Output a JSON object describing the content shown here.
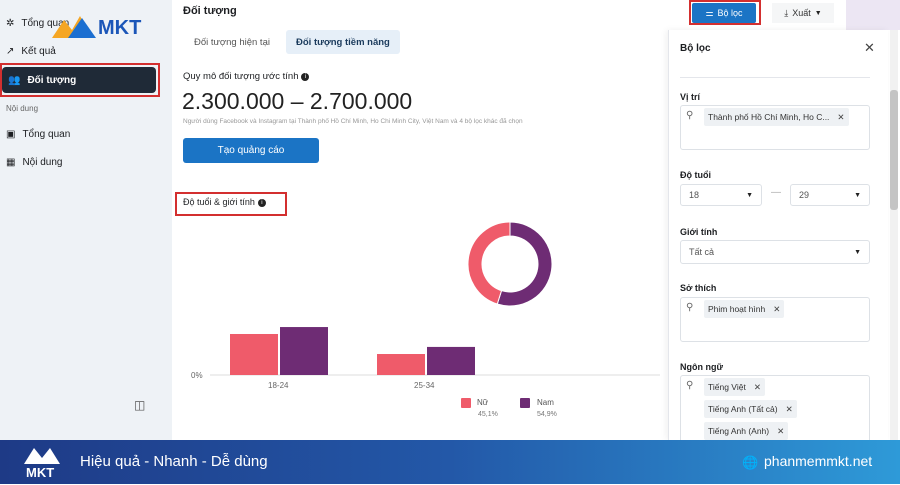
{
  "sidebar": {
    "items": [
      {
        "label": "Tổng quan",
        "icon": "overview-icon"
      },
      {
        "label": "Kết quả",
        "icon": "results-icon"
      },
      {
        "label": "Đối tượng",
        "icon": "audience-icon",
        "active": true
      }
    ],
    "section_label": "Nội dung",
    "content_items": [
      {
        "label": "Tổng quan",
        "icon": "content-overview-icon"
      },
      {
        "label": "Nội dung",
        "icon": "table-icon"
      }
    ],
    "logo_text": "MKT"
  },
  "header": {
    "title": "Đối tượng",
    "filter_button": "Bộ lọc",
    "export_button": "Xuất"
  },
  "tabs": [
    {
      "label": "Đối tượng hiện tại"
    },
    {
      "label": "Đối tượng tiềm năng",
      "active": true
    }
  ],
  "audience": {
    "size_label": "Quy mô đối tượng ước tính",
    "size_value": "2.300.000 – 2.700.000",
    "description": "Người dùng Facebook và Instagram tại Thành phố Hồ Chí Minh, Ho Chi Minh City, Việt Nam và 4 bộ lọc khác đã chọn",
    "create_button": "Tạo quảng cáo"
  },
  "chart_section_title": "Độ tuổi & giới tính",
  "chart_data": [
    {
      "type": "bar",
      "categories": [
        "18-24",
        "25-34"
      ],
      "ytick": "0%",
      "series": [
        {
          "name": "Nữ",
          "values": [
            29.5,
            15.1
          ],
          "color": "#ef5b6a"
        },
        {
          "name": "Nam",
          "values": [
            34.5,
            20.2
          ],
          "color": "#6e2c74"
        }
      ]
    },
    {
      "type": "pie",
      "donut": true,
      "slices": [
        {
          "name": "Nữ",
          "value": 45.1,
          "label": "45,1%",
          "color": "#ef5b6a"
        },
        {
          "name": "Nam",
          "value": 54.9,
          "label": "54,9%",
          "color": "#6e2c74"
        }
      ]
    }
  ],
  "filter_panel": {
    "title": "Bộ lọc",
    "location": {
      "label": "Vị trí",
      "chips": [
        "Thành phố Hồ Chí Minh, Ho C..."
      ]
    },
    "age": {
      "label": "Độ tuổi",
      "min": "18",
      "max": "29",
      "separator": "—"
    },
    "gender": {
      "label": "Giới tính",
      "value": "Tất cả"
    },
    "interests": {
      "label": "Sở thích",
      "chips": [
        "Phim hoạt hình"
      ]
    },
    "languages": {
      "label": "Ngôn ngữ",
      "chips": [
        "Tiếng Việt",
        "Tiếng Anh (Tất cả)",
        "Tiếng Anh (Anh)"
      ]
    }
  },
  "banner": {
    "logo_text": "MKT",
    "slogan": "Hiệu quả - Nhanh  - Dễ dùng",
    "website": "phanmemmkt.net"
  }
}
